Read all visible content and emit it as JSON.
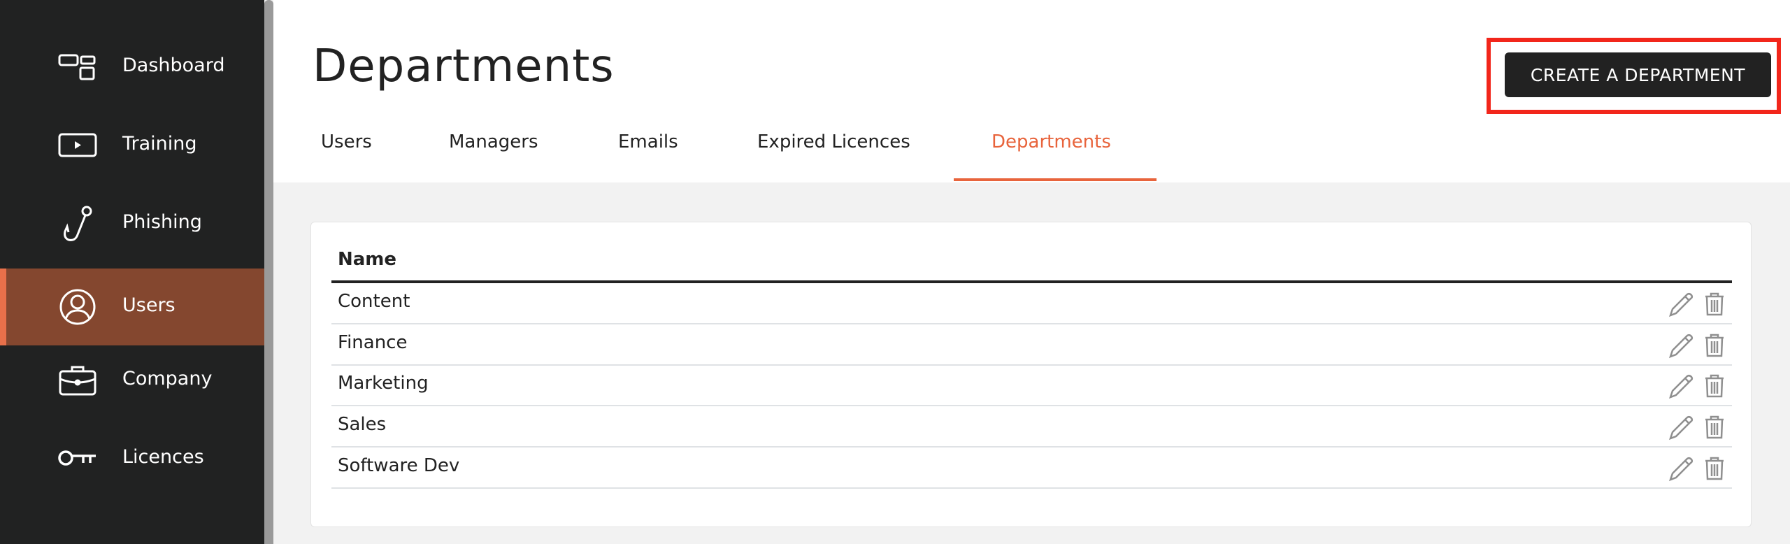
{
  "sidebar": {
    "items": [
      {
        "label": "Dashboard",
        "icon": "dashboard-icon"
      },
      {
        "label": "Training",
        "icon": "play-icon"
      },
      {
        "label": "Phishing",
        "icon": "hook-icon"
      },
      {
        "label": "Users",
        "icon": "user-circle-icon",
        "active": true
      },
      {
        "label": "Company",
        "icon": "briefcase-icon"
      },
      {
        "label": "Licences",
        "icon": "key-icon"
      }
    ]
  },
  "header": {
    "title": "Departments",
    "create_button": "CREATE A DEPARTMENT",
    "tabs": [
      {
        "label": "Users"
      },
      {
        "label": "Managers"
      },
      {
        "label": "Emails"
      },
      {
        "label": "Expired Licences"
      },
      {
        "label": "Departments",
        "active": true
      }
    ]
  },
  "table": {
    "header": "Name",
    "rows": [
      "Content",
      "Finance",
      "Marketing",
      "Sales",
      "Software Dev"
    ]
  },
  "colors": {
    "accent": "#e8643c",
    "sidebar": "#212222",
    "active_item": "#84472f",
    "highlight_box": "#f2261b"
  }
}
